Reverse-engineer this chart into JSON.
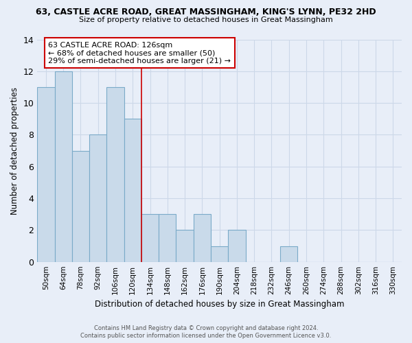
{
  "title1": "63, CASTLE ACRE ROAD, GREAT MASSINGHAM, KING'S LYNN, PE32 2HD",
  "title2": "Size of property relative to detached houses in Great Massingham",
  "xlabel": "Distribution of detached houses by size in Great Massingham",
  "ylabel": "Number of detached properties",
  "footer1": "Contains HM Land Registry data © Crown copyright and database right 2024.",
  "footer2": "Contains public sector information licensed under the Open Government Licence v3.0.",
  "bin_labels": [
    "50sqm",
    "64sqm",
    "78sqm",
    "92sqm",
    "106sqm",
    "120sqm",
    "134sqm",
    "148sqm",
    "162sqm",
    "176sqm",
    "190sqm",
    "204sqm",
    "218sqm",
    "232sqm",
    "246sqm",
    "260sqm",
    "274sqm",
    "288sqm",
    "302sqm",
    "316sqm",
    "330sqm"
  ],
  "bar_values": [
    11,
    12,
    7,
    8,
    11,
    9,
    3,
    3,
    2,
    3,
    1,
    2,
    0,
    0,
    1,
    0,
    0,
    0,
    0,
    0,
    0
  ],
  "bar_color": "#c9daea",
  "bar_edge_color": "#7aaac8",
  "highlight_bin_index": 5,
  "highlight_line_color": "#cc0000",
  "annotation_line1": "63 CASTLE ACRE ROAD: 126sqm",
  "annotation_line2": "← 68% of detached houses are smaller (50)",
  "annotation_line3": "29% of semi-detached houses are larger (21) →",
  "annotation_box_color": "white",
  "annotation_border_color": "#cc0000",
  "ylim": [
    0,
    14
  ],
  "yticks": [
    0,
    2,
    4,
    6,
    8,
    10,
    12,
    14
  ],
  "grid_color": "#ccd8e8",
  "bg_color": "#e8eef8"
}
